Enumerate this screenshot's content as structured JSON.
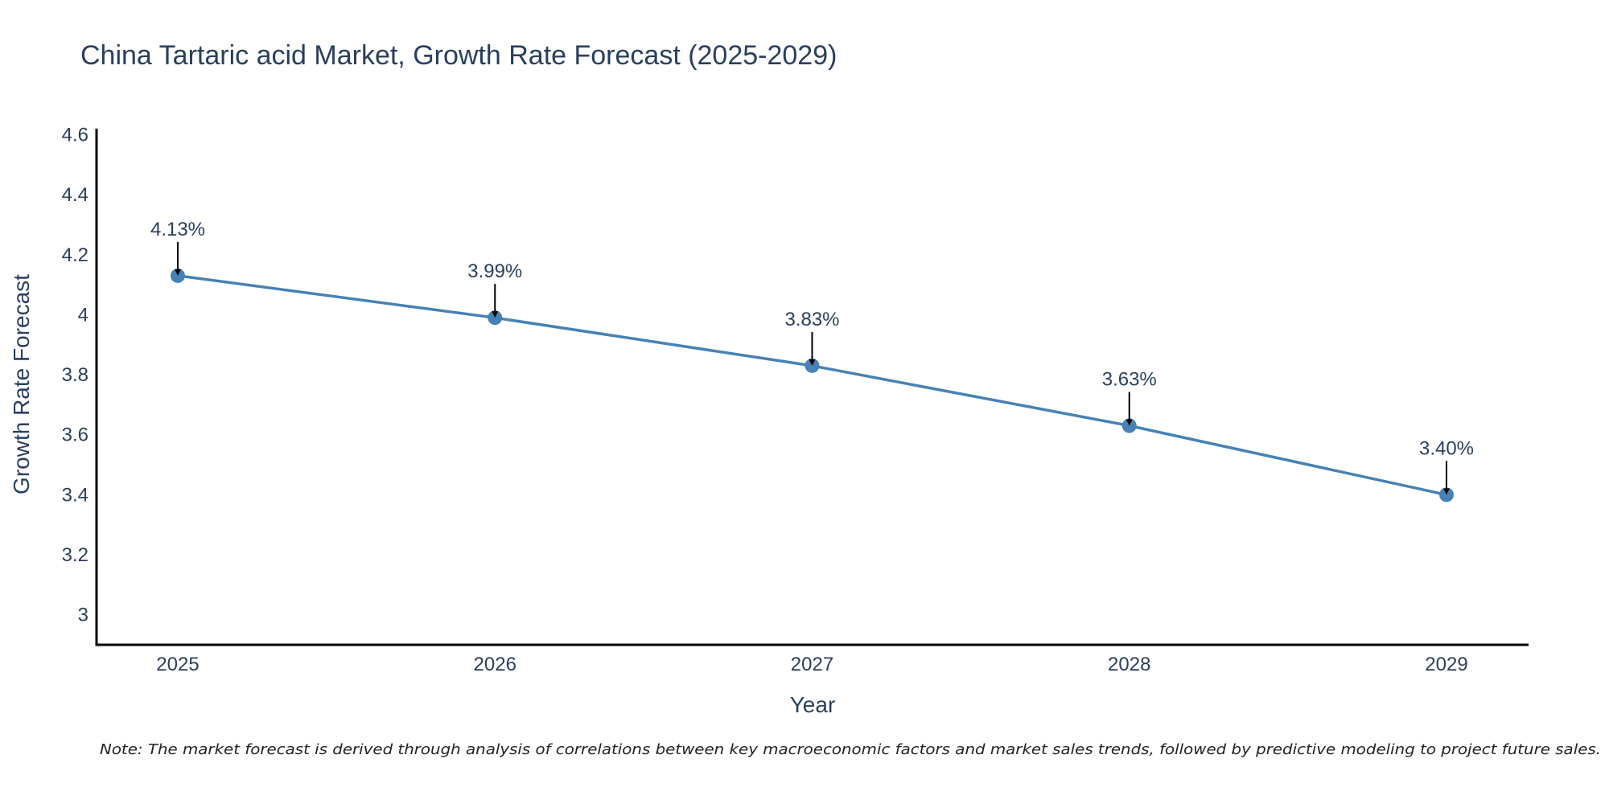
{
  "chart_data": {
    "type": "line",
    "title": "China Tartaric acid Market, Growth Rate Forecast (2025-2029)",
    "xlabel": "Year",
    "ylabel": "Growth Rate Forecast",
    "categories": [
      "2025",
      "2026",
      "2027",
      "2028",
      "2029"
    ],
    "values": [
      4.13,
      3.99,
      3.83,
      3.63,
      3.4
    ],
    "data_labels": [
      "4.13%",
      "3.99%",
      "3.83%",
      "3.63%",
      "3.40%"
    ],
    "ylim": [
      2.9,
      4.62
    ],
    "yticks": [
      3,
      3.2,
      3.4,
      3.6,
      3.8,
      4,
      4.2,
      4.4,
      4.6
    ],
    "ytick_labels": [
      "3",
      "3.2",
      "3.4",
      "3.6",
      "3.8",
      "4",
      "4.2",
      "4.4",
      "4.6"
    ],
    "line_color": "#4682b4",
    "marker_color": "#4682b4",
    "grid": false,
    "note": "Note: The market forecast is derived through analysis of correlations between key macroeconomic factors and market sales trends, followed by predictive modeling to project future sales."
  }
}
